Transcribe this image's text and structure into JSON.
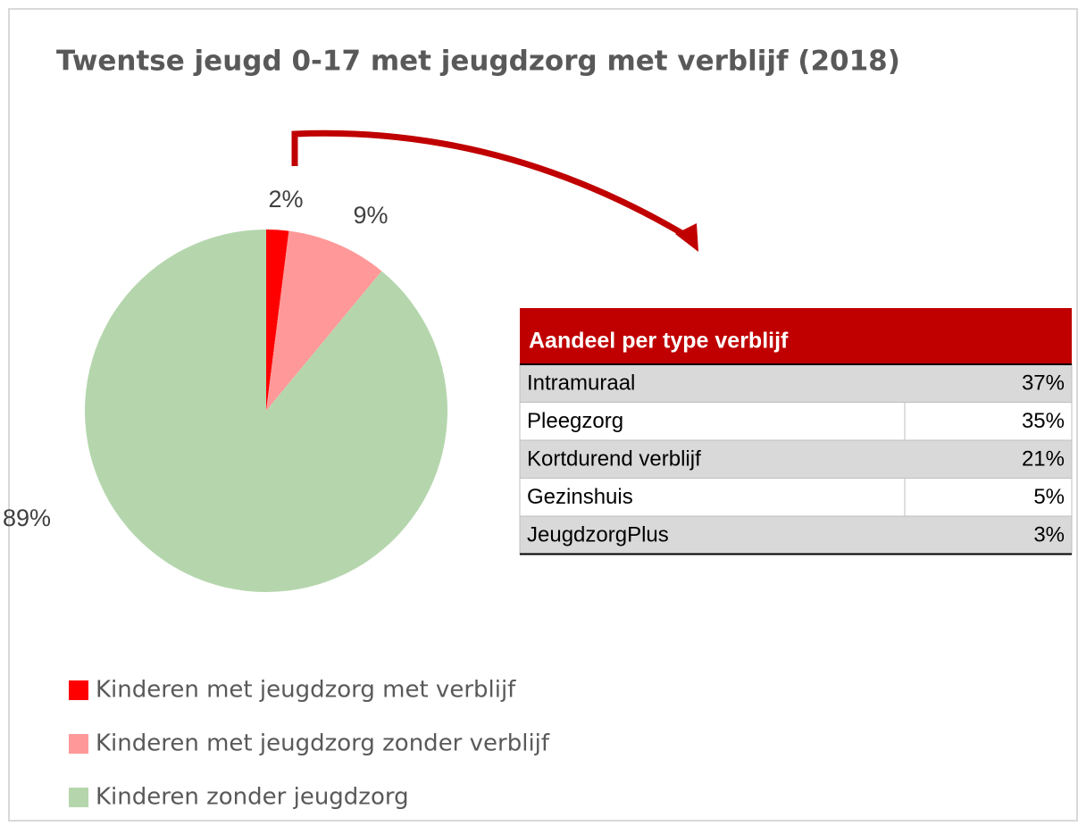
{
  "chart_data": {
    "type": "pie",
    "title": "Twentse jeugd 0-17 met jeugdzorg met verblijf (2018)",
    "categories": [
      "Kinderen met jeugdzorg met verblijf",
      "Kinderen met jeugdzorg zonder verblijf",
      "Kinderen zonder jeugdzorg"
    ],
    "values": [
      2,
      9,
      89
    ],
    "value_labels": [
      "2%",
      "9%",
      "89%"
    ],
    "colors": [
      "#ff0000",
      "#ff9999",
      "#b5d6ad"
    ],
    "legend": "bottom"
  },
  "table": {
    "title": "Aandeel per type verblijf",
    "rows": [
      [
        "Intramuraal",
        "37%"
      ],
      [
        "Pleegzorg",
        "35%"
      ],
      [
        "Kortdurend verblijf",
        "21%"
      ],
      [
        "Gezinshuis",
        "5%"
      ],
      [
        "JeugdzorgPlus",
        "3%"
      ]
    ]
  }
}
